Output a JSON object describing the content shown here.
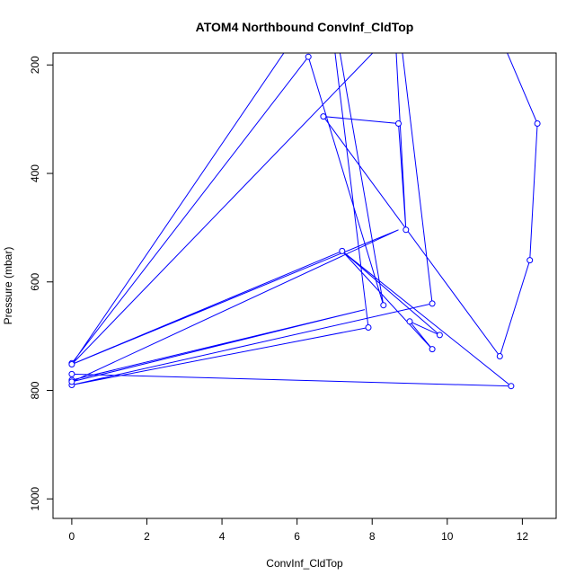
{
  "chart_data": {
    "type": "line",
    "title": "ATOM4 Northbound ConvInf_CldTop",
    "xlabel": "ConvInf_CldTop",
    "ylabel": "Pressure (mbar)",
    "xlim": [
      -0.5,
      12.9
    ],
    "ylim": [
      1036,
      178
    ],
    "y_reversed": true,
    "x_ticks": [
      0,
      2,
      4,
      6,
      8,
      10,
      12
    ],
    "y_ticks": [
      200,
      400,
      600,
      800,
      1000
    ],
    "grid": false,
    "legend": "none",
    "color": "#0000ff",
    "series": [
      {
        "points": [
          [
            0,
            750
          ],
          [
            6.3,
            185
          ],
          [
            8.3,
            643
          ],
          [
            6.7,
            0
          ],
          [
            7.9,
            684
          ],
          [
            0,
            790
          ],
          [
            9.6,
            640
          ],
          [
            8.5,
            0
          ],
          [
            8.9,
            504
          ],
          [
            8.7,
            308
          ],
          [
            6.7,
            295
          ],
          [
            11.4,
            737
          ],
          [
            12.2,
            560
          ],
          [
            12.4,
            308
          ],
          [
            10.5,
            0
          ],
          [
            0,
            752
          ],
          [
            7.2,
            543
          ],
          [
            9.8,
            698
          ],
          [
            9.0,
            673
          ],
          [
            9.6,
            724
          ],
          [
            7.2,
            543
          ],
          [
            11.7,
            792
          ],
          [
            0,
            770
          ],
          [
            0,
            781
          ],
          [
            7.8,
            651
          ],
          [
            0,
            784
          ],
          [
            8.7,
            504
          ],
          [
            0,
            752
          ],
          [
            7.4,
            0
          ]
        ],
        "markers": [
          [
            0,
            750
          ],
          [
            6.3,
            185
          ],
          [
            8.3,
            643
          ],
          [
            7.9,
            684
          ],
          [
            0,
            790
          ],
          [
            9.6,
            640
          ],
          [
            8.9,
            504
          ],
          [
            8.7,
            308
          ],
          [
            6.7,
            295
          ],
          [
            11.4,
            737
          ],
          [
            12.2,
            560
          ],
          [
            12.4,
            308
          ],
          [
            0,
            752
          ],
          [
            7.2,
            543
          ],
          [
            9.8,
            698
          ],
          [
            9.0,
            673
          ],
          [
            9.6,
            724
          ],
          [
            11.7,
            792
          ],
          [
            0,
            770
          ],
          [
            0,
            781
          ],
          [
            0,
            784
          ]
        ]
      }
    ]
  }
}
